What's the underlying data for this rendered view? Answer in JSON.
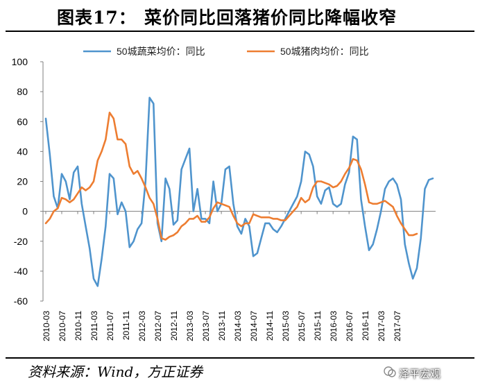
{
  "title": {
    "label": "图表17：",
    "text": "菜价同比回落猪价同比降幅收窄"
  },
  "source": "资料来源：Wind，方正证券",
  "brand": "泽平宏观",
  "chart_data": {
    "type": "line",
    "ylim": [
      -60,
      100
    ],
    "yticks": [
      -60,
      -40,
      -20,
      0,
      20,
      40,
      60,
      80,
      100
    ],
    "xticks": [
      "2010-03",
      "2010-07",
      "2010-11",
      "2011-03",
      "2011-07",
      "2011-11",
      "2012-03",
      "2012-07",
      "2012-11",
      "2013-03",
      "2013-07",
      "2013-11",
      "2014-03",
      "2014-07",
      "2014-11",
      "2015-03",
      "2015-07",
      "2015-11",
      "2016-03",
      "2016-07",
      "2016-11",
      "2017-03",
      "2017-07"
    ],
    "legend_position": "top",
    "series": [
      {
        "name": "50城蔬菜均价：同比",
        "color": "#4F94CD",
        "values": [
          62,
          38,
          10,
          2,
          25,
          20,
          8,
          26,
          30,
          5,
          -10,
          -25,
          -45,
          -50,
          -32,
          -10,
          25,
          22,
          -2,
          6,
          0,
          -24,
          -20,
          -12,
          -8,
          20,
          76,
          72,
          -8,
          -20,
          22,
          15,
          -9,
          -6,
          28,
          35,
          42,
          0,
          15,
          -5,
          -5,
          -8,
          20,
          0,
          5,
          28,
          30,
          5,
          -10,
          -15,
          -5,
          -10,
          -30,
          -28,
          -18,
          -8,
          -8,
          -12,
          -14,
          -10,
          -5,
          0,
          5,
          10,
          20,
          40,
          38,
          30,
          10,
          5,
          14,
          16,
          5,
          3,
          5,
          18,
          26,
          50,
          48,
          8,
          -10,
          -26,
          -22,
          -12,
          0,
          15,
          20,
          22,
          18,
          8,
          -22,
          -35,
          -45,
          -38,
          -18,
          15,
          21,
          22
        ],
        "label_pos": []
      },
      {
        "name": "50城猪肉均价：同比",
        "color": "#ED7D31",
        "values": [
          -8,
          -5,
          0,
          2,
          9,
          8,
          6,
          8,
          12,
          16,
          14,
          16,
          20,
          34,
          40,
          48,
          66,
          62,
          48,
          48,
          45,
          30,
          25,
          27,
          22,
          16,
          9,
          5,
          -5,
          -18,
          -19,
          -17,
          -16,
          -14,
          -10,
          -8,
          -5,
          -5,
          -3,
          -7,
          -7,
          -4,
          2,
          6,
          5,
          4,
          3,
          -3,
          -8,
          -10,
          -8,
          -8,
          -2,
          -3,
          -4,
          -4,
          -4,
          -5,
          -5,
          -6,
          -6,
          -3,
          0,
          3,
          9,
          6,
          8,
          16,
          20,
          20,
          19,
          18,
          16,
          17,
          20,
          25,
          29,
          35,
          34,
          28,
          18,
          6,
          5,
          5,
          6,
          7,
          5,
          3,
          -3,
          -8,
          -12,
          -16,
          -16,
          -15
        ],
        "label_pos": []
      }
    ]
  }
}
